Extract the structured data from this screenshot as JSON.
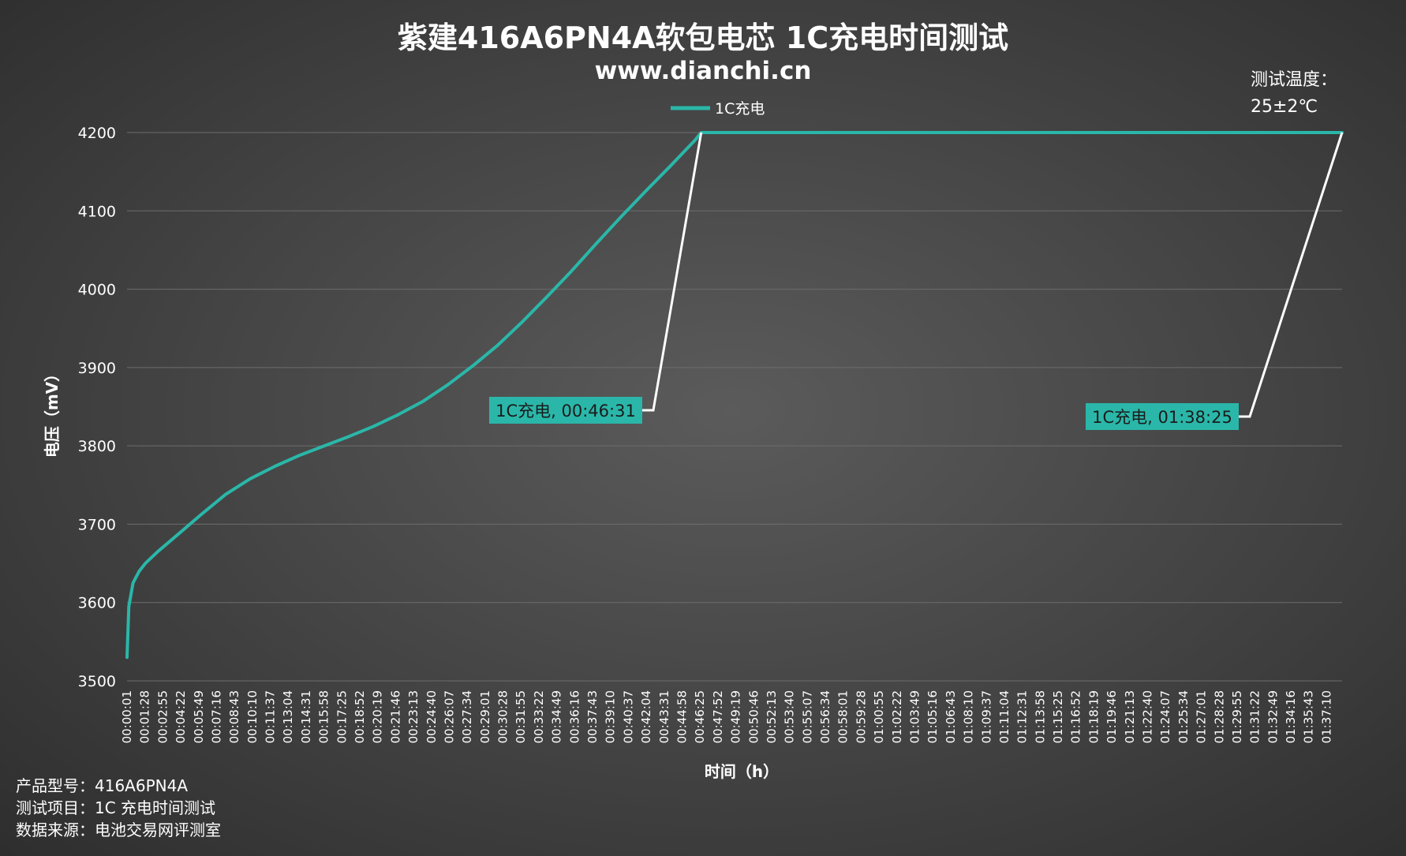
{
  "chart_data": {
    "type": "line",
    "title": "紫建416A6PN4A软包电芯 1C充电时间测试",
    "subtitle": "www.dianchi.cn",
    "xlabel": "时间（h）",
    "ylabel": "电压（mV）",
    "ylim": [
      3500,
      4200
    ],
    "yticks": [
      3500,
      3600,
      3700,
      3800,
      3900,
      4000,
      4100,
      4200
    ],
    "grid": true,
    "legend_position": "top",
    "xlim": [
      "00:00:01",
      "01:38:25"
    ],
    "xticks": [
      "00:00:01",
      "00:01:28",
      "00:02:55",
      "00:04:22",
      "00:05:49",
      "00:07:16",
      "00:08:43",
      "00:10:10",
      "00:11:37",
      "00:13:04",
      "00:14:31",
      "00:15:58",
      "00:17:25",
      "00:18:52",
      "00:20:19",
      "00:21:46",
      "00:23:13",
      "00:24:40",
      "00:26:07",
      "00:27:34",
      "00:29:01",
      "00:30:28",
      "00:31:55",
      "00:33:22",
      "00:34:49",
      "00:36:16",
      "00:37:43",
      "00:39:10",
      "00:40:37",
      "00:42:04",
      "00:43:31",
      "00:44:58",
      "00:46:25",
      "00:47:52",
      "00:49:19",
      "00:50:46",
      "00:52:13",
      "00:53:40",
      "00:55:07",
      "00:56:34",
      "00:58:01",
      "00:59:28",
      "01:00:55",
      "01:02:22",
      "01:03:49",
      "01:05:16",
      "01:06:43",
      "01:08:10",
      "01:09:37",
      "01:11:04",
      "01:12:31",
      "01:13:58",
      "01:15:25",
      "01:16:52",
      "01:18:19",
      "01:19:46",
      "01:21:13",
      "01:22:40",
      "01:24:07",
      "01:25:34",
      "01:27:01",
      "01:28:28",
      "01:29:55",
      "01:31:22",
      "01:32:49",
      "01:34:16",
      "01:35:43",
      "01:37:10"
    ],
    "series": [
      {
        "name": "1C充电",
        "color": "#2ab7a9",
        "x": [
          "00:00:01",
          "00:00:10",
          "00:00:30",
          "00:01:00",
          "00:01:30",
          "00:02:30",
          "00:04:00",
          "00:06:00",
          "00:08:00",
          "00:10:00",
          "00:12:00",
          "00:14:00",
          "00:16:00",
          "00:18:00",
          "00:20:00",
          "00:22:00",
          "00:24:00",
          "00:26:00",
          "00:28:00",
          "00:30:00",
          "00:32:00",
          "00:34:00",
          "00:36:00",
          "00:38:00",
          "00:40:00",
          "00:42:00",
          "00:44:00",
          "00:46:00",
          "00:46:31",
          "00:50:00",
          "01:00:00",
          "01:10:00",
          "01:20:00",
          "01:30:00",
          "01:38:25"
        ],
        "values": [
          3530,
          3595,
          3625,
          3640,
          3650,
          3665,
          3685,
          3712,
          3738,
          3758,
          3774,
          3788,
          3800,
          3812,
          3825,
          3840,
          3857,
          3878,
          3902,
          3928,
          3958,
          3990,
          4023,
          4058,
          4092,
          4125,
          4157,
          4190,
          4200,
          4200,
          4200,
          4200,
          4200,
          4200,
          4200
        ]
      }
    ],
    "annotations": [
      {
        "text": "1C充电, 00:46:31",
        "x": "00:46:31",
        "y": 4200
      },
      {
        "text": "1C充电, 01:38:25",
        "x": "01:38:25",
        "y": 4200
      }
    ],
    "note_line1": "测试温度：",
    "note_line2": "25±2℃"
  },
  "footer": {
    "line1": "产品型号：416A6PN4A",
    "line2": "测试项目：1C 充电时间测试",
    "line3": "数据来源：电池交易网评测室"
  }
}
